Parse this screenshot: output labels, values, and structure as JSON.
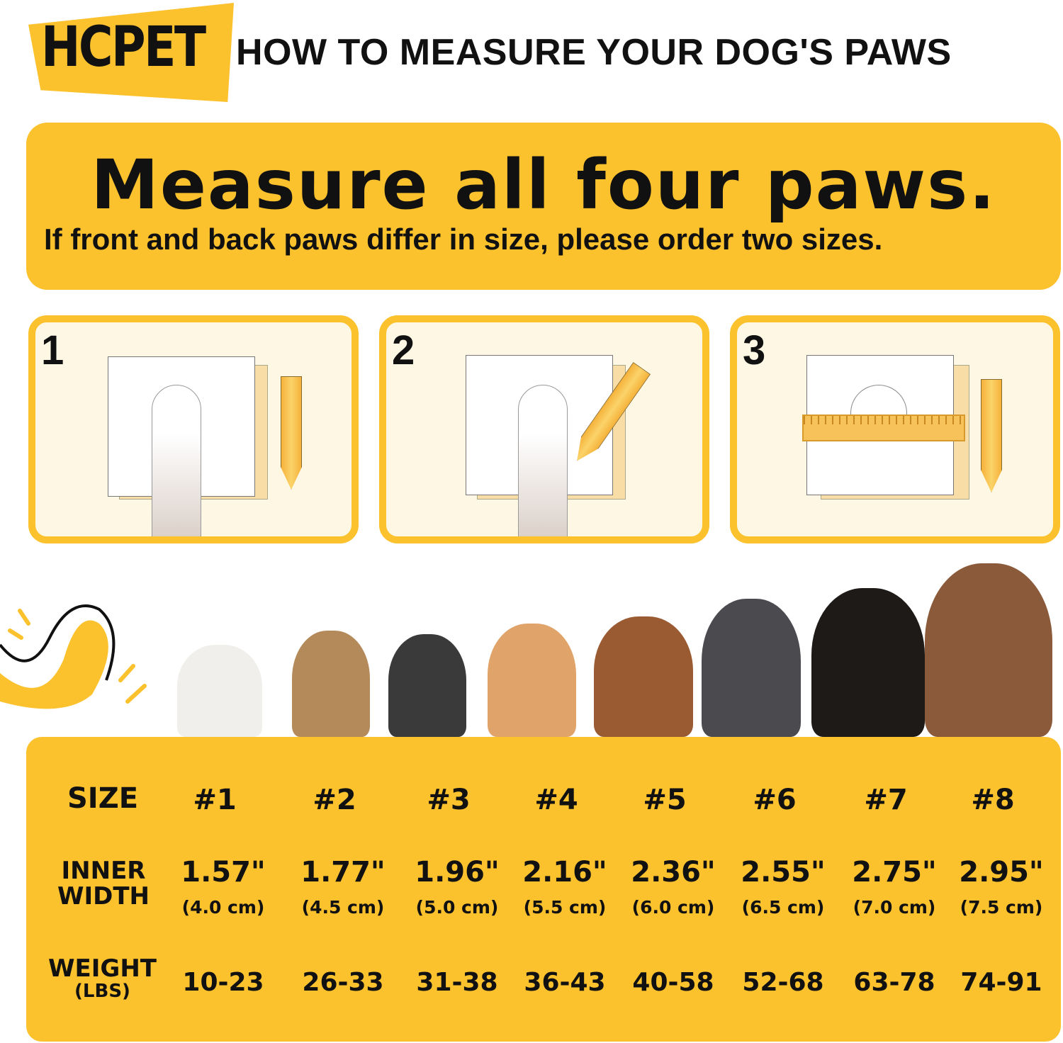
{
  "brand": {
    "logo_text": "HCPET",
    "accent": "#FBC22E"
  },
  "header": {
    "title": "HOW TO MEASURE YOUR DOG'S PAWS"
  },
  "banner": {
    "headline": "Measure all four paws.",
    "subtitle": "If front and back paws differ in size, please order two sizes."
  },
  "steps": [
    {
      "number": "1"
    },
    {
      "number": "2"
    },
    {
      "number": "3"
    }
  ],
  "size_table": {
    "row_labels": {
      "size": "SIZE",
      "width_line1": "INNER",
      "width_line2": "WIDTH",
      "weight_line1": "WEIGHT",
      "weight_line2": "(LBS)"
    },
    "columns": [
      {
        "size": "#1",
        "inches": "1.57\"",
        "cm": "(4.0 cm)",
        "weight": "10-23"
      },
      {
        "size": "#2",
        "inches": "1.77\"",
        "cm": "(4.5 cm)",
        "weight": "26-33"
      },
      {
        "size": "#3",
        "inches": "1.96\"",
        "cm": "(5.0 cm)",
        "weight": "31-38"
      },
      {
        "size": "#4",
        "inches": "2.16\"",
        "cm": "(5.5 cm)",
        "weight": "36-43"
      },
      {
        "size": "#5",
        "inches": "2.36\"",
        "cm": "(6.0 cm)",
        "weight": "40-58"
      },
      {
        "size": "#6",
        "inches": "2.55\"",
        "cm": "(6.5 cm)",
        "weight": "52-68"
      },
      {
        "size": "#7",
        "inches": "2.75\"",
        "cm": "(7.0 cm)",
        "weight": "63-78"
      },
      {
        "size": "#8",
        "inches": "2.95\"",
        "cm": "(7.5 cm)",
        "weight": "74-91"
      }
    ]
  }
}
